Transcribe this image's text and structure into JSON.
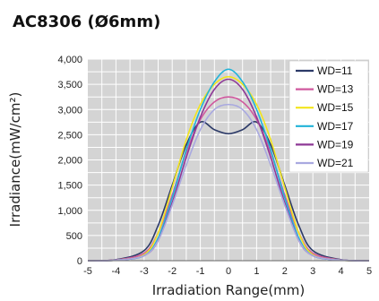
{
  "chart_data": {
    "type": "line",
    "title": "AC8306 (Ø6mm)",
    "xlabel": "Irradiation Range(mm)",
    "ylabel": "Irradiance(mW/cm²)",
    "xlim": [
      -5,
      5
    ],
    "ylim": [
      0,
      4000
    ],
    "xticks": [
      "-5",
      "-4",
      "-3",
      "-2",
      "-1",
      "0",
      "1",
      "2",
      "3",
      "4",
      "5"
    ],
    "yticks": [
      "0",
      "500",
      "1,000",
      "1,500",
      "2,000",
      "2,500",
      "3,000",
      "3,500",
      "4,000"
    ],
    "grid": true,
    "legend": "top-right",
    "colors": {
      "plot_background": "#d4d4d4",
      "grid": "#ffffff",
      "legend_background": "#ffffff"
    },
    "series": [
      {
        "name": "WD=11",
        "color": "#2c3a68",
        "x": [
          -5,
          -4,
          -3,
          -2.5,
          -2,
          -1.5,
          -1,
          -0.5,
          0,
          0.5,
          1,
          1.5,
          2,
          2.5,
          3,
          4,
          5
        ],
        "y": [
          0,
          20,
          200,
          700,
          1500,
          2300,
          2750,
          2600,
          2520,
          2600,
          2750,
          2300,
          1500,
          700,
          200,
          20,
          0
        ]
      },
      {
        "name": "WD=13",
        "color": "#d0589e",
        "x": [
          -5,
          -4,
          -3,
          -2.5,
          -2,
          -1.5,
          -1,
          -0.5,
          0,
          0.5,
          1,
          1.5,
          2,
          2.5,
          3,
          4,
          5
        ],
        "y": [
          0,
          15,
          150,
          550,
          1300,
          2150,
          2800,
          3150,
          3250,
          3150,
          2800,
          2150,
          1300,
          550,
          150,
          15,
          0
        ]
      },
      {
        "name": "WD=15",
        "color": "#f2e51c",
        "x": [
          -5,
          -4,
          -3,
          -2.5,
          -2,
          -1.5,
          -1,
          -0.5,
          0,
          0.5,
          1,
          1.5,
          2,
          2.5,
          3,
          4,
          5
        ],
        "y": [
          0,
          10,
          120,
          550,
          1450,
          2400,
          3100,
          3500,
          3650,
          3500,
          3100,
          2400,
          1450,
          550,
          120,
          10,
          0
        ]
      },
      {
        "name": "WD=17",
        "color": "#21b3d8",
        "x": [
          -5,
          -4,
          -3,
          -2.5,
          -2,
          -1.5,
          -1,
          -0.5,
          0,
          0.5,
          1,
          1.5,
          2,
          2.5,
          3,
          4,
          5
        ],
        "y": [
          0,
          10,
          100,
          450,
          1250,
          2200,
          3000,
          3550,
          3800,
          3550,
          3000,
          2200,
          1250,
          450,
          100,
          10,
          0
        ]
      },
      {
        "name": "WD=19",
        "color": "#8e3896",
        "x": [
          -5,
          -4,
          -3,
          -2.5,
          -2,
          -1.5,
          -1,
          -0.5,
          0,
          0.5,
          1,
          1.5,
          2,
          2.5,
          3,
          4,
          5
        ],
        "y": [
          0,
          10,
          100,
          400,
          1150,
          2050,
          2850,
          3400,
          3600,
          3400,
          2850,
          2050,
          1150,
          400,
          100,
          10,
          0
        ]
      },
      {
        "name": "WD=21",
        "color": "#a9a9e0",
        "x": [
          -5,
          -4,
          -3,
          -2.5,
          -2,
          -1.5,
          -1,
          -0.5,
          0,
          0.5,
          1,
          1.5,
          2,
          2.5,
          3,
          4,
          5
        ],
        "y": [
          0,
          10,
          100,
          400,
          1100,
          1900,
          2600,
          3000,
          3100,
          3000,
          2600,
          1900,
          1100,
          400,
          100,
          10,
          0
        ]
      }
    ]
  }
}
